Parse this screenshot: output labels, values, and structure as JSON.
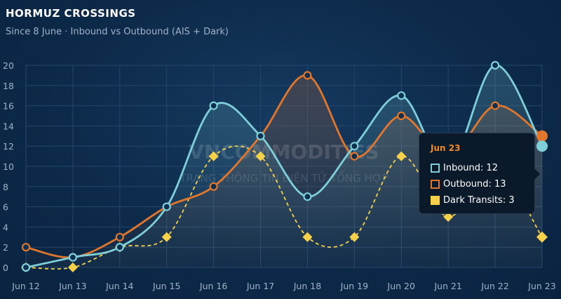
{
  "header": {
    "title": "HORMUZ CROSSINGS",
    "subtitle": "Since 8 June · Inbound vs Outbound (AIS + Dark)"
  },
  "watermark": {
    "brand": "VNCOMMODITIES",
    "tagline": "TRANG THÔNG TIN ĐIỆN TỬ TỔNG HỢP"
  },
  "colors": {
    "inbound": "#7ecfd9",
    "outbound": "#e0772d",
    "dark": "#f5d04a",
    "grid": "#24466b",
    "axis_text": "#9fb3c8"
  },
  "tooltip": {
    "date": "Jun 23",
    "items": [
      {
        "label": "Inbound: 12",
        "series": "inbound"
      },
      {
        "label": "Outbound: 13",
        "series": "outbound"
      },
      {
        "label": "Dark Transits: 3",
        "series": "dark"
      }
    ]
  },
  "chart_data": {
    "type": "line",
    "title": "HORMUZ CROSSINGS",
    "subtitle": "Since 8 June · Inbound vs Outbound (AIS + Dark)",
    "categories": [
      "Jun 12",
      "Jun 13",
      "Jun 14",
      "Jun 15",
      "Jun 16",
      "Jun 17",
      "Jun 18",
      "Jun 19",
      "Jun 20",
      "Jun 21",
      "Jun 22",
      "Jun 23"
    ],
    "yticks": [
      0,
      2,
      4,
      6,
      8,
      10,
      12,
      14,
      16,
      18,
      20
    ],
    "ylim": [
      0,
      20
    ],
    "grid": true,
    "series": [
      {
        "name": "Inbound",
        "key": "inbound",
        "values": [
          0,
          1,
          2,
          6,
          16,
          13,
          7,
          12,
          17,
          10,
          20,
          12
        ]
      },
      {
        "name": "Outbound",
        "key": "outbound",
        "values": [
          2,
          1,
          3,
          6,
          8,
          13,
          19,
          11,
          15,
          11,
          16,
          13
        ]
      },
      {
        "name": "Dark Transits",
        "key": "dark",
        "values": [
          0,
          0,
          2,
          3,
          11,
          11,
          3,
          3,
          11,
          5,
          10,
          3
        ]
      }
    ]
  }
}
